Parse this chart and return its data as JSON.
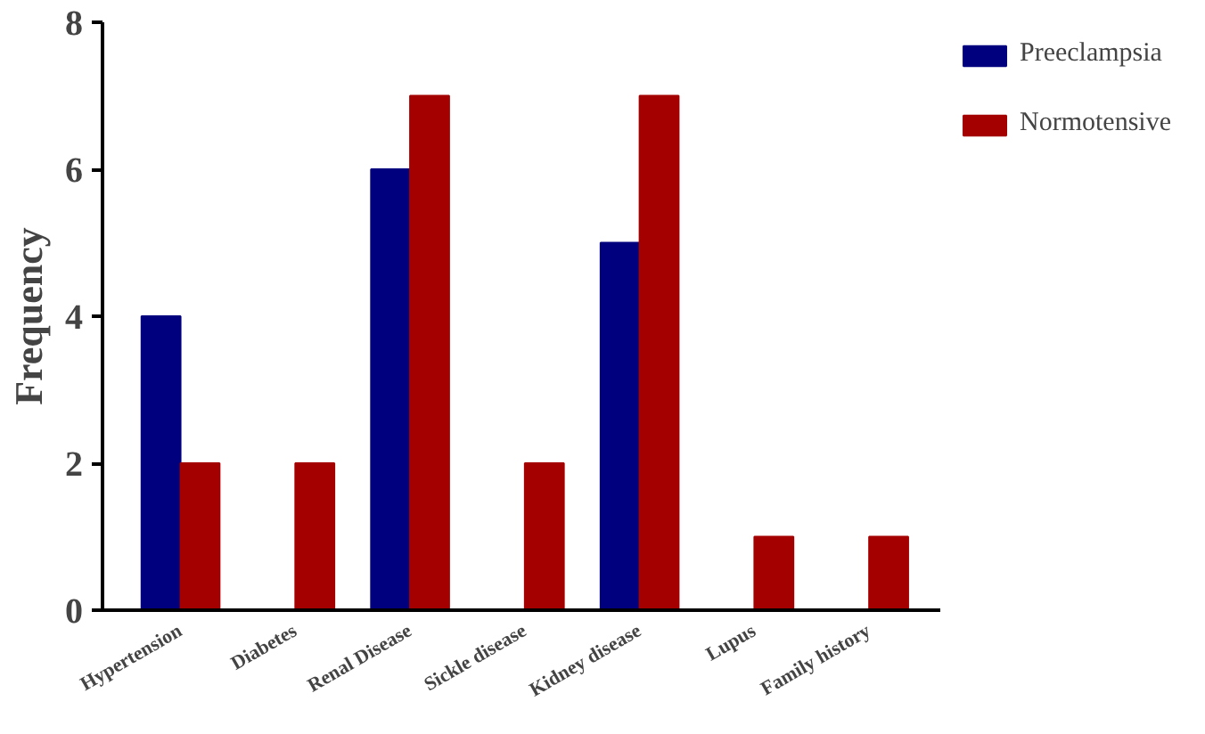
{
  "chart_data": {
    "type": "bar",
    "ylabel": "Frequency",
    "categories": [
      "Hypertension",
      "Diabetes",
      "Renal Disease",
      "Sickle disease",
      "Kidney disease",
      "Lupus",
      "Family history"
    ],
    "series": [
      {
        "name": "Preeclampsia",
        "color": "#00007f",
        "values": [
          4,
          0,
          6,
          0,
          5,
          0,
          0
        ]
      },
      {
        "name": "Normotensive",
        "color": "#a50000",
        "values": [
          2,
          2,
          7,
          2,
          7,
          1,
          1
        ]
      }
    ],
    "ylim": [
      0,
      8
    ],
    "yticks": [
      0,
      2,
      4,
      6,
      8
    ],
    "grid": false,
    "legend": "right"
  }
}
